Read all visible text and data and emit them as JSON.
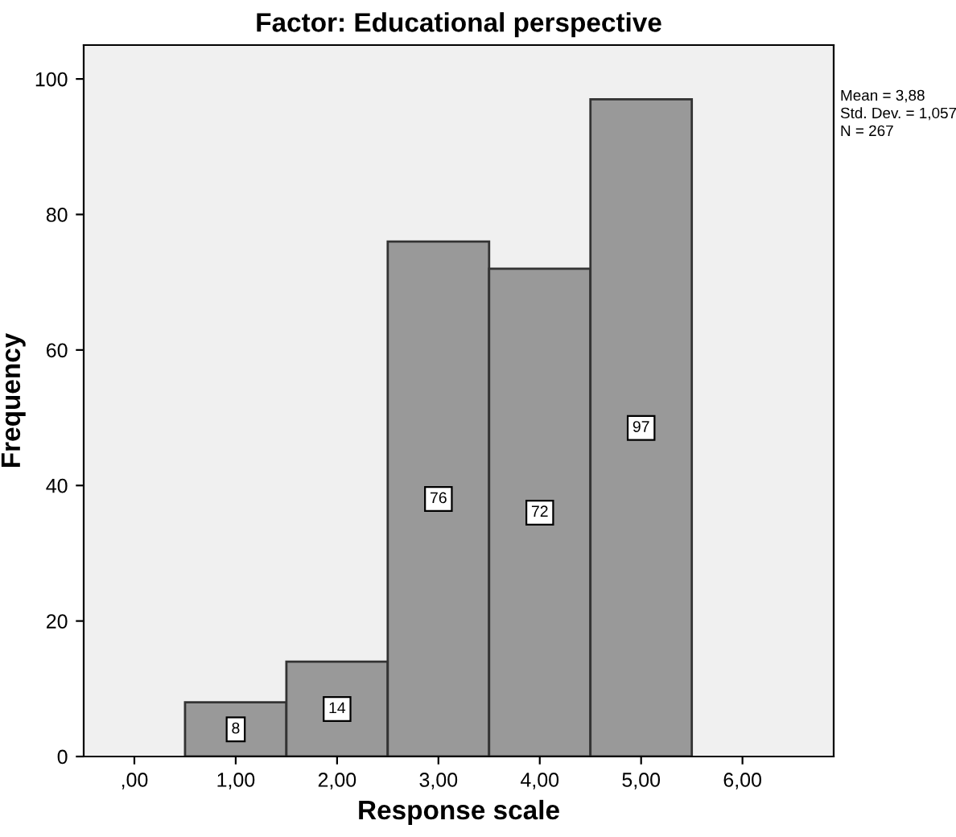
{
  "chart_data": {
    "type": "histogram",
    "title": "Factor: Educational perspective",
    "xlabel": "Response scale",
    "ylabel": "Frequency",
    "bins": [
      0.5,
      1.5,
      2.5,
      3.5,
      4.5,
      5.5
    ],
    "values": [
      8,
      14,
      76,
      72,
      97
    ],
    "color": "#999999",
    "data_labels": true,
    "xlim": [
      -0.5,
      6.9
    ],
    "ylim": [
      0,
      105
    ],
    "xticks": [
      {
        "value": 0,
        "label": ",00"
      },
      {
        "value": 1,
        "label": "1,00"
      },
      {
        "value": 2,
        "label": "2,00"
      },
      {
        "value": 3,
        "label": "3,00"
      },
      {
        "value": 4,
        "label": "4,00"
      },
      {
        "value": 5,
        "label": "5,00"
      },
      {
        "value": 6,
        "label": "6,00"
      }
    ],
    "yticks": [
      0,
      20,
      40,
      60,
      80,
      100
    ],
    "grid": false,
    "annotations": [
      "Mean = 3,88",
      "Std. Dev. = 1,057",
      "N = 267"
    ]
  }
}
